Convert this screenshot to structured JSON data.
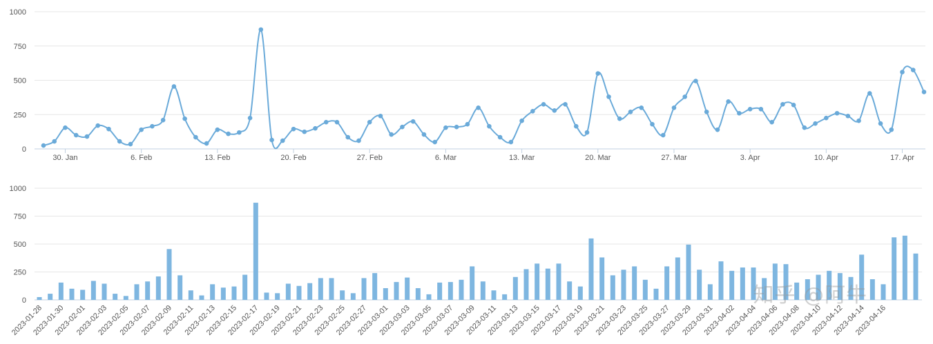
{
  "watermark": "知乎 @阿牛",
  "colors": {
    "series": "#7eb6e0",
    "line": "#6aaad9",
    "grid": "#e6e6e6",
    "axis": "#c0d0e0",
    "text": "#555555"
  },
  "chart_data": [
    {
      "type": "line",
      "smooth": true,
      "markers": true,
      "start_date": "2023-01-28",
      "values": [
        25,
        55,
        155,
        100,
        90,
        170,
        145,
        55,
        35,
        140,
        165,
        210,
        455,
        220,
        85,
        40,
        140,
        110,
        120,
        225,
        870,
        65,
        60,
        145,
        125,
        150,
        195,
        195,
        85,
        60,
        195,
        240,
        105,
        160,
        200,
        105,
        50,
        155,
        160,
        180,
        300,
        165,
        85,
        50,
        205,
        275,
        325,
        280,
        325,
        165,
        120,
        550,
        380,
        220,
        270,
        300,
        180,
        100,
        300,
        380,
        495,
        270,
        140,
        345,
        260,
        290,
        290,
        195,
        325,
        320,
        155,
        185,
        225,
        260,
        240,
        205,
        405,
        185,
        140,
        560,
        575,
        415
      ],
      "ylim": [
        0,
        1000
      ],
      "yticks": [
        0,
        250,
        500,
        750,
        1000
      ],
      "xtick_labels": [
        "30. Jan",
        "6. Feb",
        "13. Feb",
        "20. Feb",
        "27. Feb",
        "6. Mar",
        "13. Mar",
        "20. Mar",
        "27. Mar",
        "3. Apr",
        "10. Apr",
        "17. Apr"
      ],
      "grid": true
    },
    {
      "type": "bar",
      "start_date": "2023-01-28",
      "values": [
        25,
        55,
        155,
        100,
        90,
        170,
        145,
        55,
        35,
        140,
        165,
        210,
        455,
        220,
        85,
        40,
        140,
        110,
        120,
        225,
        870,
        65,
        60,
        145,
        125,
        150,
        195,
        195,
        85,
        60,
        195,
        240,
        105,
        160,
        200,
        105,
        50,
        155,
        160,
        180,
        300,
        165,
        85,
        50,
        205,
        275,
        325,
        280,
        325,
        165,
        120,
        550,
        380,
        220,
        270,
        300,
        180,
        100,
        300,
        380,
        495,
        270,
        140,
        345,
        260,
        290,
        290,
        195,
        325,
        320,
        155,
        185,
        225,
        260,
        240,
        205,
        405,
        185,
        140,
        560,
        575,
        415
      ],
      "ylim": [
        0,
        1000
      ],
      "yticks": [
        0,
        250,
        500,
        750,
        1000
      ],
      "xtick_labels": [
        "2023-01-28",
        "2023-01-30",
        "2023-02-01",
        "2023-02-03",
        "2023-02-05",
        "2023-02-07",
        "2023-02-09",
        "2023-02-11",
        "2023-02-13",
        "2023-02-15",
        "2023-02-17",
        "2023-02-19",
        "2023-02-21",
        "2023-02-23",
        "2023-02-25",
        "2023-02-27",
        "2023-03-01",
        "2023-03-03",
        "2023-03-05",
        "2023-03-07",
        "2023-03-09",
        "2023-03-11",
        "2023-03-13",
        "2023-03-15",
        "2023-03-17",
        "2023-03-19",
        "2023-03-21",
        "2023-03-23",
        "2023-03-25",
        "2023-03-27",
        "2023-03-29",
        "2023-03-31",
        "2023-04-02",
        "2023-04-04",
        "2023-04-06",
        "2023-04-08",
        "2023-04-10",
        "2023-04-12",
        "2023-04-14",
        "2023-04-16"
      ],
      "grid": true
    }
  ]
}
